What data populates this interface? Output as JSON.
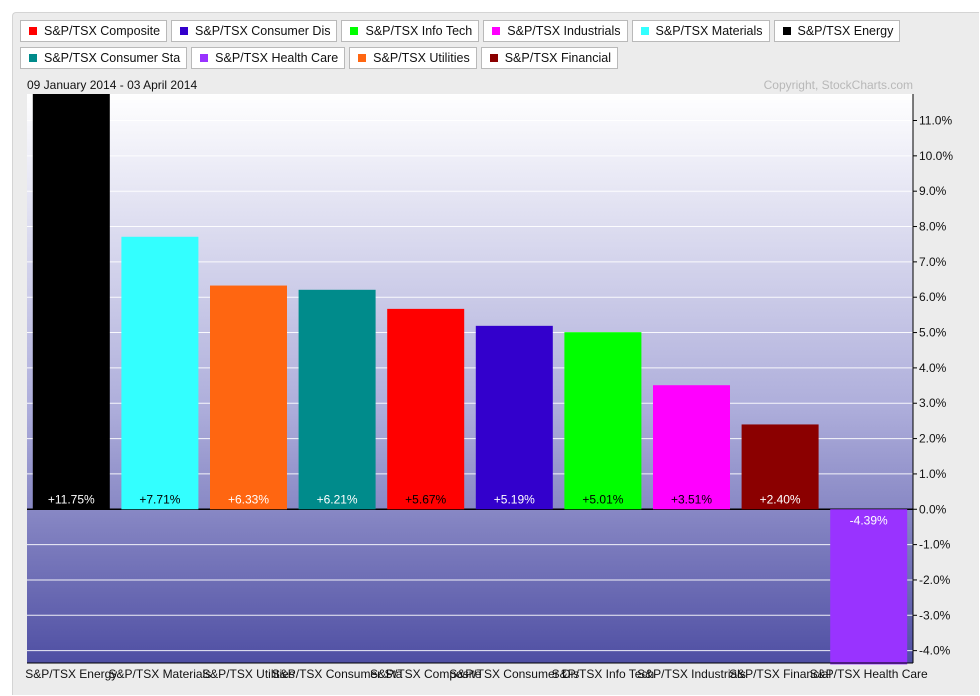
{
  "legend": [
    {
      "label": "S&P/TSX Composite",
      "color": "#ff0000"
    },
    {
      "label": "S&P/TSX Consumer Dis",
      "color": "#3300cc"
    },
    {
      "label": "S&P/TSX Info Tech",
      "color": "#00ff00"
    },
    {
      "label": "S&P/TSX Industrials",
      "color": "#ff00ff"
    },
    {
      "label": "S&P/TSX Materials",
      "color": "#33ffff"
    },
    {
      "label": "S&P/TSX Energy",
      "color": "#000000"
    },
    {
      "label": "S&P/TSX Consumer Sta",
      "color": "#008b8b"
    },
    {
      "label": "S&P/TSX Health Care",
      "color": "#9933ff"
    },
    {
      "label": "S&P/TSX Utilities",
      "color": "#ff6611"
    },
    {
      "label": "S&P/TSX Financial",
      "color": "#8b0000"
    }
  ],
  "chart_data": {
    "type": "bar",
    "date_range": "09 January 2014 - 03 April 2014",
    "copyright": "Copyright, StockCharts.com",
    "categories": [
      "S&P/TSX Energy",
      "S&P/TSX Materials",
      "S&P/TSX Utilities",
      "S&P/TSX Consumer Sta",
      "S&P/TSX Composite",
      "S&P/TSX Consumer Dis",
      "S&P/TSX Info Tech",
      "S&P/TSX Industrials",
      "S&P/TSX Financial",
      "S&P/TSX Health Care"
    ],
    "category_labels": [
      "S&P/TSX Energy",
      "S&P/TSX Materials",
      "S&P/TSX Utilities",
      "S&P/TSX Consumer Sta",
      "S&P/TSX Composite",
      "S&P/TSX Consumer Dis",
      "S&P/TSX Info Tech",
      "S&P/TSX Industrials",
      "S&P/TSX Financial",
      "S&P/TSX Health Care"
    ],
    "values": [
      11.75,
      7.71,
      6.33,
      6.21,
      5.67,
      5.19,
      5.01,
      3.51,
      2.4,
      -4.39
    ],
    "value_labels": [
      "+11.75%",
      "+7.71%",
      "+6.33%",
      "+6.21%",
      "+5.67%",
      "+5.19%",
      "+5.01%",
      "+3.51%",
      "+2.40%",
      "-4.39%"
    ],
    "colors": [
      "#000000",
      "#33ffff",
      "#ff6611",
      "#008b8b",
      "#ff0000",
      "#3300cc",
      "#00ff00",
      "#ff00ff",
      "#8b0000",
      "#9933ff"
    ],
    "label_colors": [
      "#ffffff",
      "#000000",
      "#ffffff",
      "#ffffff",
      "#000000",
      "#ffffff",
      "#000000",
      "#000000",
      "#ffffff",
      "#ffffff"
    ],
    "ylim": [
      -4.35,
      11.75
    ],
    "yticks": [
      11,
      10,
      9,
      8,
      7,
      6,
      5,
      4,
      3,
      2,
      1,
      0,
      -1,
      -2,
      -3,
      -4
    ],
    "ytick_labels": [
      "11.0%",
      "10.0%",
      "9.0%",
      "8.0%",
      "7.0%",
      "6.0%",
      "5.0%",
      "4.0%",
      "3.0%",
      "2.0%",
      "1.0%",
      "0.0%",
      "-1.0%",
      "-2.0%",
      "-3.0%",
      "-4.0%"
    ],
    "y_axis_position": "right",
    "grid": true,
    "legend_position": "top",
    "xlabel": "",
    "ylabel": ""
  }
}
